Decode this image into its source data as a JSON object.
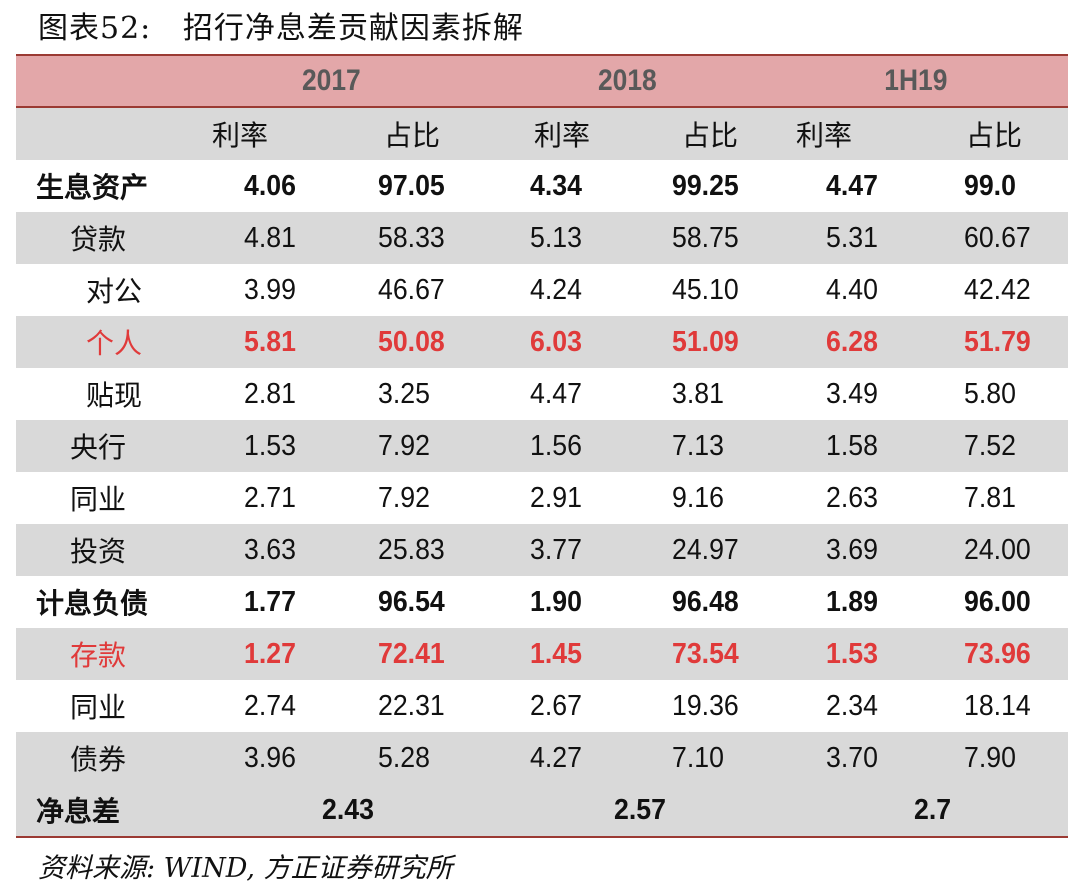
{
  "title": "图表52:   招行净息差贡献因素拆解",
  "header": {
    "years": [
      "2017",
      "2018",
      "1H19"
    ],
    "sub_headers": [
      "利率",
      "占比",
      "利率",
      "占比",
      "利率",
      "占比"
    ]
  },
  "rows": [
    {
      "label": "生息资产",
      "values": [
        "4.06",
        "97.05",
        "4.34",
        "99.25",
        "4.47",
        "99.0"
      ],
      "bold": true,
      "highlight": false
    },
    {
      "label": "贷款",
      "values": [
        "4.81",
        "58.33",
        "5.13",
        "58.75",
        "5.31",
        "60.67"
      ],
      "bold": false,
      "highlight": false
    },
    {
      "label": "对公",
      "values": [
        "3.99",
        "46.67",
        "4.24",
        "45.10",
        "4.40",
        "42.42"
      ],
      "bold": false,
      "highlight": false
    },
    {
      "label": "个人",
      "values": [
        "5.81",
        "50.08",
        "6.03",
        "51.09",
        "6.28",
        "51.79"
      ],
      "bold": true,
      "highlight": true
    },
    {
      "label": "贴现",
      "values": [
        "2.81",
        "3.25",
        "4.47",
        "3.81",
        "3.49",
        "5.80"
      ],
      "bold": false,
      "highlight": false
    },
    {
      "label": "央行",
      "values": [
        "1.53",
        "7.92",
        "1.56",
        "7.13",
        "1.58",
        "7.52"
      ],
      "bold": false,
      "highlight": false
    },
    {
      "label": "同业",
      "values": [
        "2.71",
        "7.92",
        "2.91",
        "9.16",
        "2.63",
        "7.81"
      ],
      "bold": false,
      "highlight": false
    },
    {
      "label": "投资",
      "values": [
        "3.63",
        "25.83",
        "3.77",
        "24.97",
        "3.69",
        "24.00"
      ],
      "bold": false,
      "highlight": false
    },
    {
      "label": "计息负债",
      "values": [
        "1.77",
        "96.54",
        "1.90",
        "96.48",
        "1.89",
        "96.00"
      ],
      "bold": true,
      "highlight": false
    },
    {
      "label": "存款",
      "values": [
        "1.27",
        "72.41",
        "1.45",
        "73.54",
        "1.53",
        "73.96"
      ],
      "bold": true,
      "highlight": true
    },
    {
      "label": "同业",
      "values": [
        "2.74",
        "22.31",
        "2.67",
        "19.36",
        "2.34",
        "18.14"
      ],
      "bold": false,
      "highlight": false
    },
    {
      "label": "债券",
      "values": [
        "3.96",
        "5.28",
        "4.27",
        "7.10",
        "3.70",
        "7.90"
      ],
      "bold": false,
      "highlight": false
    }
  ],
  "nim": {
    "label": "净息差",
    "values": [
      "2.43",
      "2.57",
      "2.7"
    ]
  },
  "source": "资料来源: WIND, 方正证券研究所",
  "colors": {
    "header_bg": "#e3a7a9",
    "border": "#9b3a33",
    "stripe": "#d9d9d9",
    "highlight_text": "#e03a3a",
    "year_text": "#595959"
  }
}
